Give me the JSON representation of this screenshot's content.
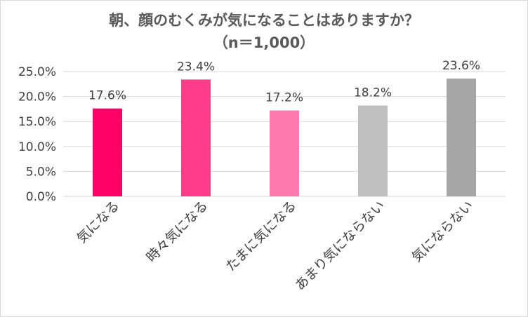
{
  "chart_data": {
    "type": "bar",
    "title": "朝、顔のむくみが気になることはありますか？",
    "subtitle": "（n＝1,000）",
    "categories": [
      "気になる",
      "時々気になる",
      "たまに気になる",
      "あまり気にならない",
      "気にならない"
    ],
    "values": [
      17.6,
      23.4,
      17.2,
      18.2,
      23.6
    ],
    "data_labels": [
      "17.6%",
      "23.4%",
      "17.2%",
      "18.2%",
      "23.6%"
    ],
    "colors": [
      "#ff0066",
      "#ff3d88",
      "#ff7aae",
      "#bfbfbf",
      "#a6a6a6"
    ],
    "ylim": [
      0,
      25
    ],
    "yticks": [
      0,
      5,
      10,
      15,
      20,
      25
    ],
    "ytick_labels": [
      "0.0%",
      "5.0%",
      "10.0%",
      "15.0%",
      "20.0%",
      "25.0%"
    ],
    "grid": true,
    "gridline_color": "#d9d9d9",
    "xlabel": "",
    "ylabel": ""
  }
}
